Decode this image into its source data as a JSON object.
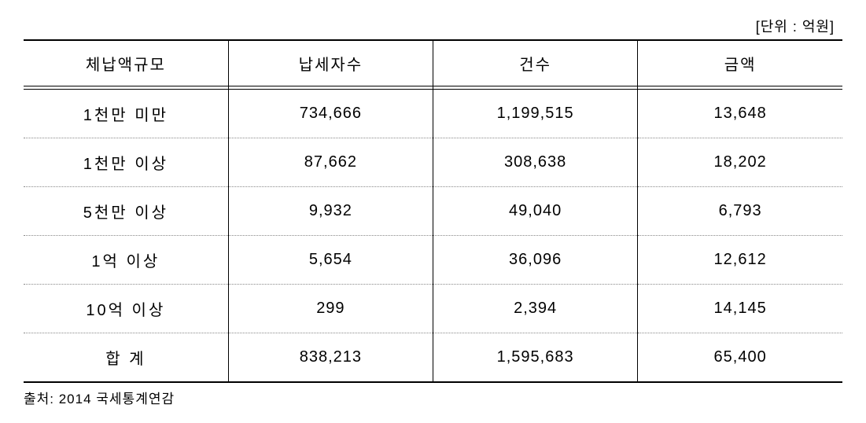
{
  "unit_label": "[단위 : 억원]",
  "columns": [
    "체납액규모",
    "납세자수",
    "건수",
    "금액"
  ],
  "rows": [
    [
      "1천만 미만",
      "734,666",
      "1,199,515",
      "13,648"
    ],
    [
      "1천만 이상",
      "87,662",
      "308,638",
      "18,202"
    ],
    [
      "5천만 이상",
      "9,932",
      "49,040",
      "6,793"
    ],
    [
      "1억 이상",
      "5,654",
      "36,096",
      "12,612"
    ],
    [
      "10억 이상",
      "299",
      "2,394",
      "14,145"
    ],
    [
      "합 계",
      "838,213",
      "1,595,683",
      "65,400"
    ]
  ],
  "source": "출처: 2014 국세통계연감",
  "styling": {
    "background_color": "#ffffff",
    "border_color": "#000000",
    "dotted_border_color": "#888888",
    "font_family": "Malgun Gothic",
    "header_fontsize": 20,
    "cell_fontsize": 20,
    "unit_fontsize": 18,
    "source_fontsize": 17,
    "column_widths_pct": [
      25,
      25,
      25,
      25
    ],
    "top_border_width": 2,
    "bottom_border_width": 2
  }
}
